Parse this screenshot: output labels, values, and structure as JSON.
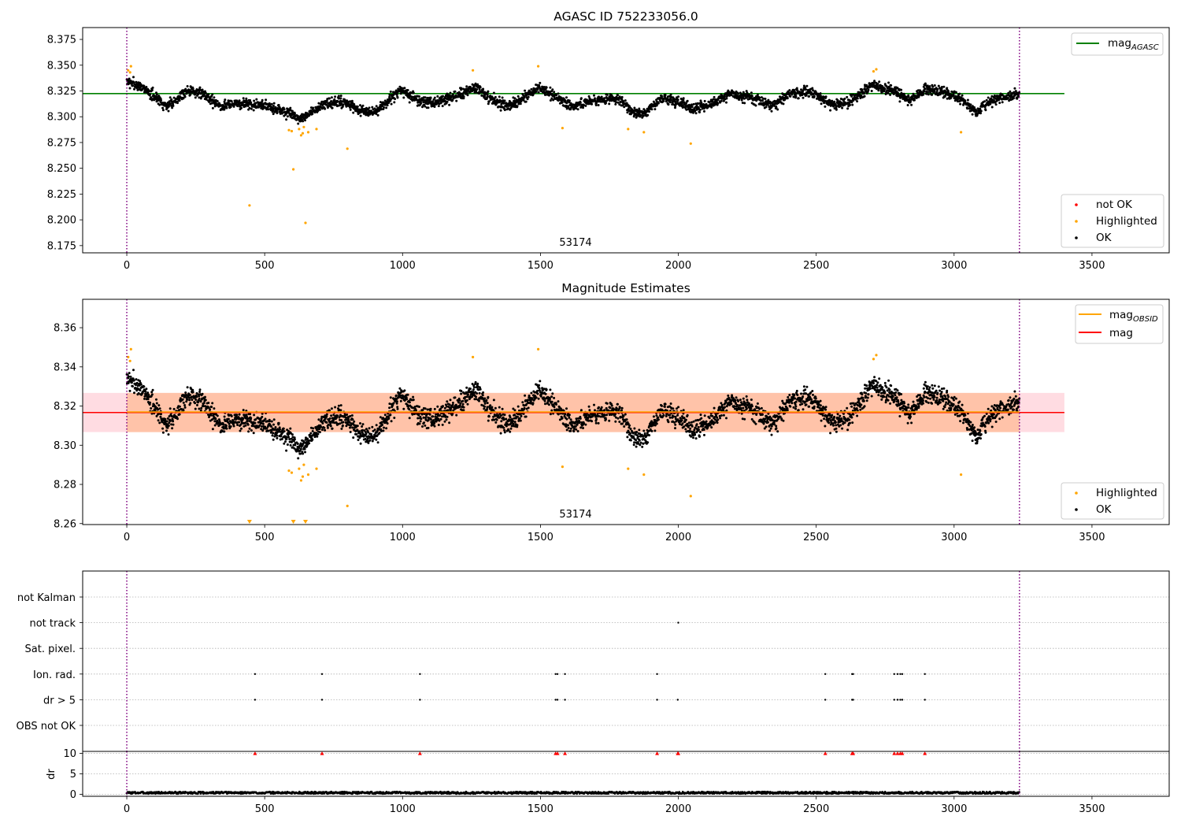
{
  "colors": {
    "ok": "#000000",
    "highlighted": "#ffa500",
    "not_ok": "#ff0000",
    "agasc_line": "#008000",
    "mag_obsid_line": "#ffa500",
    "mag_line": "#ff0000",
    "band_pink": "#ffc0cb",
    "band_orange": "#ffb384",
    "obs_boundary": "#800080",
    "grid": "#b0b0b0"
  },
  "chart_data": [
    {
      "type": "scatter",
      "title": "AGASC ID 752233056.0",
      "xlim": [
        -160,
        3780
      ],
      "ylim": [
        8.168,
        8.3865
      ],
      "xticks": [
        0,
        500,
        1000,
        1500,
        2000,
        2500,
        3000,
        3500
      ],
      "yticks": [
        8.175,
        8.2,
        8.225,
        8.25,
        8.275,
        8.3,
        8.325,
        8.35,
        8.375
      ],
      "ytick_labels": [
        "8.175",
        "8.200",
        "8.225",
        "8.250",
        "8.275",
        "8.300",
        "8.325",
        "8.350",
        "8.375"
      ],
      "obs_label": "53174",
      "obs_boundaries": [
        0,
        3237
      ],
      "reference_line": {
        "name": "mag_AGASC",
        "label_main": "mag",
        "label_sub": "AGASC",
        "y": 8.3225,
        "x_range": [
          -160,
          3400
        ]
      },
      "legend_top": [
        {
          "key": "agasc",
          "label_main": "mag",
          "label_sub": "AGASC"
        }
      ],
      "legend_bottom": [
        {
          "key": "not_ok",
          "label": "not OK"
        },
        {
          "key": "highlighted",
          "label": "Highlighted"
        },
        {
          "key": "ok",
          "label": "OK"
        }
      ],
      "series": [
        {
          "name": "not OK",
          "points": []
        },
        {
          "name": "Highlighted",
          "points": [
            [
              5,
              8.345
            ],
            [
              15,
              8.349
            ],
            [
              12,
              8.343
            ],
            [
              445,
              8.214
            ],
            [
              588,
              8.287
            ],
            [
              598,
              8.286
            ],
            [
              604,
              8.249
            ],
            [
              625,
              8.288
            ],
            [
              632,
              8.282
            ],
            [
              638,
              8.284
            ],
            [
              642,
              8.29
            ],
            [
              648,
              8.197
            ],
            [
              658,
              8.285
            ],
            [
              688,
              8.288
            ],
            [
              800,
              8.269
            ],
            [
              1255,
              8.345
            ],
            [
              1492,
              8.349
            ],
            [
              1580,
              8.289
            ],
            [
              1818,
              8.288
            ],
            [
              1875,
              8.285
            ],
            [
              2045,
              8.274
            ],
            [
              2708,
              8.344
            ],
            [
              2718,
              8.346
            ],
            [
              3025,
              8.285
            ]
          ]
        },
        {
          "name": "OK",
          "trend": [
            [
              0,
              8.334
            ],
            [
              60,
              8.328
            ],
            [
              100,
              8.32
            ],
            [
              150,
              8.31
            ],
            [
              220,
              8.326
            ],
            [
              280,
              8.322
            ],
            [
              340,
              8.31
            ],
            [
              400,
              8.313
            ],
            [
              460,
              8.312
            ],
            [
              520,
              8.31
            ],
            [
              580,
              8.304
            ],
            [
              630,
              8.297
            ],
            [
              700,
              8.31
            ],
            [
              780,
              8.315
            ],
            [
              840,
              8.306
            ],
            [
              900,
              8.304
            ],
            [
              960,
              8.318
            ],
            [
              1000,
              8.326
            ],
            [
              1040,
              8.318
            ],
            [
              1100,
              8.313
            ],
            [
              1180,
              8.318
            ],
            [
              1260,
              8.328
            ],
            [
              1320,
              8.318
            ],
            [
              1380,
              8.31
            ],
            [
              1440,
              8.318
            ],
            [
              1500,
              8.329
            ],
            [
              1560,
              8.318
            ],
            [
              1620,
              8.31
            ],
            [
              1700,
              8.316
            ],
            [
              1780,
              8.318
            ],
            [
              1830,
              8.305
            ],
            [
              1880,
              8.303
            ],
            [
              1940,
              8.318
            ],
            [
              2000,
              8.314
            ],
            [
              2050,
              8.308
            ],
            [
              2100,
              8.309
            ],
            [
              2180,
              8.322
            ],
            [
              2260,
              8.319
            ],
            [
              2340,
              8.311
            ],
            [
              2400,
              8.322
            ],
            [
              2480,
              8.324
            ],
            [
              2560,
              8.312
            ],
            [
              2620,
              8.314
            ],
            [
              2700,
              8.33
            ],
            [
              2780,
              8.325
            ],
            [
              2840,
              8.316
            ],
            [
              2900,
              8.327
            ],
            [
              2960,
              8.324
            ],
            [
              3020,
              8.318
            ],
            [
              3080,
              8.304
            ],
            [
              3140,
              8.316
            ],
            [
              3237,
              8.322
            ]
          ],
          "n_points": 3237,
          "noise": 0.0065
        }
      ]
    },
    {
      "type": "scatter",
      "title": "Magnitude Estimates",
      "xlim": [
        -160,
        3780
      ],
      "ylim": [
        8.2595,
        8.3745
      ],
      "xticks": [
        0,
        500,
        1000,
        1500,
        2000,
        2500,
        3000,
        3500
      ],
      "yticks": [
        8.26,
        8.28,
        8.3,
        8.32,
        8.34,
        8.36
      ],
      "ytick_labels": [
        "8.26",
        "8.28",
        "8.30",
        "8.32",
        "8.34",
        "8.36"
      ],
      "obs_label": "53174",
      "obs_boundaries": [
        0,
        3237
      ],
      "mag_line": {
        "name": "mag",
        "y": 8.3167,
        "band": [
          8.3067,
          8.3267
        ],
        "x_range": [
          -160,
          3400
        ]
      },
      "mag_obsid_line": {
        "name": "mag_OBSID",
        "label_main": "mag",
        "label_sub": "OBSID",
        "y": 8.317,
        "band": [
          8.3067,
          8.3267
        ],
        "x_range": [
          0,
          3237
        ]
      },
      "legend_top": [
        {
          "key": "mag_obsid",
          "label_main": "mag",
          "label_sub": "OBSID"
        },
        {
          "key": "mag",
          "label_main": "mag",
          "label_sub": ""
        }
      ],
      "legend_bottom": [
        {
          "key": "highlighted",
          "label": "Highlighted"
        },
        {
          "key": "ok",
          "label": "OK"
        }
      ],
      "series": [
        {
          "name": "Highlighted",
          "points": [
            [
              5,
              8.345
            ],
            [
              15,
              8.349
            ],
            [
              12,
              8.343
            ],
            [
              588,
              8.287
            ],
            [
              598,
              8.286
            ],
            [
              625,
              8.288
            ],
            [
              632,
              8.282
            ],
            [
              638,
              8.284
            ],
            [
              642,
              8.29
            ],
            [
              658,
              8.285
            ],
            [
              688,
              8.288
            ],
            [
              800,
              8.269
            ],
            [
              1255,
              8.345
            ],
            [
              1492,
              8.349
            ],
            [
              1580,
              8.289
            ],
            [
              1818,
              8.288
            ],
            [
              1875,
              8.285
            ],
            [
              2045,
              8.274
            ],
            [
              2708,
              8.344
            ],
            [
              2718,
              8.346
            ],
            [
              3025,
              8.285
            ]
          ]
        },
        {
          "name": "Highlighted (below range)",
          "points": [
            [
              445,
              8.214
            ],
            [
              604,
              8.249
            ],
            [
              648,
              8.197
            ]
          ]
        },
        {
          "name": "OK",
          "trend": [
            [
              0,
              8.334
            ],
            [
              60,
              8.328
            ],
            [
              100,
              8.32
            ],
            [
              150,
              8.31
            ],
            [
              220,
              8.326
            ],
            [
              280,
              8.322
            ],
            [
              340,
              8.31
            ],
            [
              400,
              8.313
            ],
            [
              460,
              8.312
            ],
            [
              520,
              8.31
            ],
            [
              580,
              8.304
            ],
            [
              630,
              8.297
            ],
            [
              700,
              8.31
            ],
            [
              780,
              8.315
            ],
            [
              840,
              8.306
            ],
            [
              900,
              8.304
            ],
            [
              960,
              8.318
            ],
            [
              1000,
              8.326
            ],
            [
              1040,
              8.318
            ],
            [
              1100,
              8.313
            ],
            [
              1180,
              8.318
            ],
            [
              1260,
              8.328
            ],
            [
              1320,
              8.318
            ],
            [
              1380,
              8.31
            ],
            [
              1440,
              8.318
            ],
            [
              1500,
              8.329
            ],
            [
              1560,
              8.318
            ],
            [
              1620,
              8.31
            ],
            [
              1700,
              8.316
            ],
            [
              1780,
              8.318
            ],
            [
              1830,
              8.305
            ],
            [
              1880,
              8.303
            ],
            [
              1940,
              8.318
            ],
            [
              2000,
              8.314
            ],
            [
              2050,
              8.308
            ],
            [
              2100,
              8.309
            ],
            [
              2180,
              8.322
            ],
            [
              2260,
              8.319
            ],
            [
              2340,
              8.311
            ],
            [
              2400,
              8.322
            ],
            [
              2480,
              8.324
            ],
            [
              2560,
              8.312
            ],
            [
              2620,
              8.314
            ],
            [
              2700,
              8.33
            ],
            [
              2780,
              8.325
            ],
            [
              2840,
              8.316
            ],
            [
              2900,
              8.327
            ],
            [
              2960,
              8.324
            ],
            [
              3020,
              8.318
            ],
            [
              3080,
              8.304
            ],
            [
              3140,
              8.316
            ],
            [
              3237,
              8.322
            ]
          ],
          "n_points": 3237,
          "noise": 0.0065
        }
      ]
    },
    {
      "type": "scatter",
      "title": "",
      "xlim": [
        -160,
        3780
      ],
      "obs_boundaries": [
        0,
        3237
      ],
      "flag_categories": [
        "OBS not OK",
        "dr > 5",
        "Ion. rad.",
        "Sat. pixel.",
        "not track",
        "not Kalman"
      ],
      "flags": {
        "not Kalman": [],
        "not track": [
          2000
        ],
        "Sat. pixel.": [],
        "Ion. rad.": [
          465,
          708,
          1063,
          1555,
          1562,
          1589,
          1923,
          2533,
          2630,
          2634,
          2783,
          2795,
          2805,
          2812,
          2894
        ],
        "dr > 5": [
          465,
          708,
          1063,
          1555,
          1562,
          1589,
          1923,
          1998,
          2533,
          2630,
          2634,
          2783,
          2795,
          2805,
          2812,
          2894
        ],
        "OBS not OK": []
      }
    },
    {
      "type": "scatter",
      "title": "",
      "xlim": [
        -160,
        3780
      ],
      "ylim": [
        -0.5,
        10.5
      ],
      "xticks": [
        0,
        500,
        1000,
        1500,
        2000,
        2500,
        3000,
        3500
      ],
      "yticks": [
        0,
        5,
        10
      ],
      "ytick_labels": [
        "0",
        "5",
        "10"
      ],
      "ylabel": "dr",
      "obs_boundaries": [
        0,
        3237
      ],
      "series": [
        {
          "name": "dr",
          "n_points": 3237,
          "typical": 0.4
        },
        {
          "name": "dr > 10 (clipped)",
          "x": [
            465,
            708,
            1063,
            1555,
            1562,
            1589,
            1923,
            1998,
            2000,
            2533,
            2630,
            2634,
            2783,
            2795,
            2805,
            2812,
            2894
          ]
        }
      ]
    }
  ]
}
